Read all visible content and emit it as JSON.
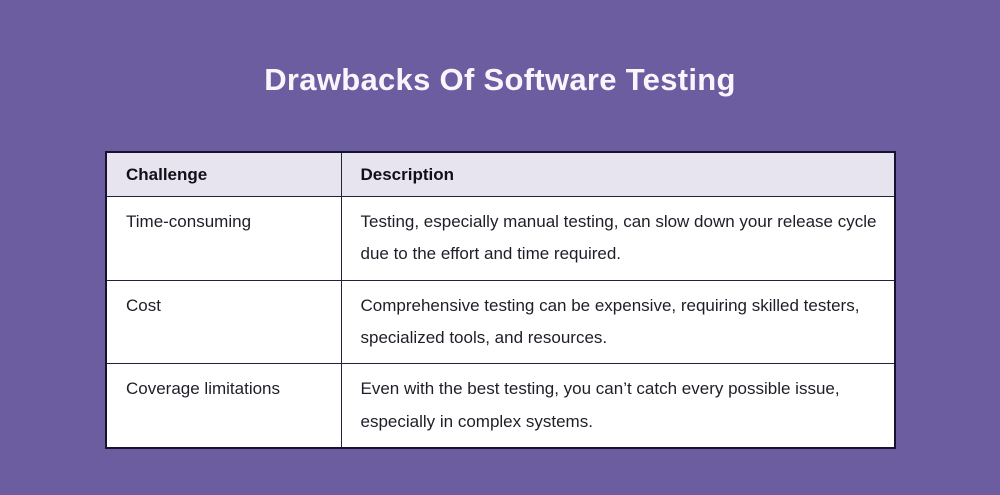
{
  "title": "Drawbacks Of Software Testing",
  "colors": {
    "background": "#6c5ca0",
    "header_background": "#e7e4f0",
    "cell_background": "#ffffff",
    "border": "#171230",
    "title_text": "#f8f6fc",
    "body_text": "#1f1e28"
  },
  "table": {
    "headers": {
      "challenge": "Challenge",
      "description": "Description"
    },
    "rows": [
      {
        "challenge": "Time-consuming",
        "description": "Testing, especially manual testing, can slow down your release cycle due to the effort and time required."
      },
      {
        "challenge": "Cost",
        "description": "Comprehensive testing can be expensive, requiring skilled testers, specialized tools, and resources."
      },
      {
        "challenge": "Coverage limitations",
        "description": "Even with the best testing, you can’t catch every possible issue, especially in complex systems."
      }
    ]
  },
  "chart_data": {
    "type": "table",
    "title": "Drawbacks Of Software Testing",
    "columns": [
      "Challenge",
      "Description"
    ],
    "rows": [
      [
        "Time-consuming",
        "Testing, especially manual testing, can slow down your release cycle due to the effort and time required."
      ],
      [
        "Cost",
        "Comprehensive testing can be expensive, requiring skilled testers, specialized tools, and resources."
      ],
      [
        "Coverage limitations",
        "Even with the best testing, you can’t catch every possible issue, especially in complex systems."
      ]
    ],
    "layout": {
      "title_position": "top-center",
      "header_row_shaded": true,
      "grid": true
    }
  }
}
